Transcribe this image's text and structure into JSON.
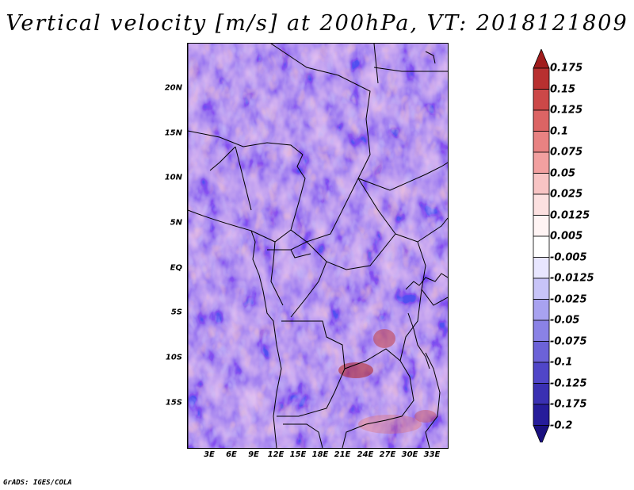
{
  "title": "Vertical velocity [m/s] at 200hPa, VT: 2018121809",
  "credit": "GrADS: IGES/COLA",
  "map": {
    "lat_labels": [
      "20N",
      "15N",
      "10N",
      "5N",
      "EQ",
      "5S",
      "10S",
      "15S"
    ],
    "lon_labels": [
      "3E",
      "6E",
      "9E",
      "12E",
      "15E",
      "18E",
      "21E",
      "24E",
      "27E",
      "30E",
      "33E"
    ]
  },
  "colorbar": {
    "labels": [
      "0.175",
      "0.15",
      "0.125",
      "0.1",
      "0.075",
      "0.05",
      "0.025",
      "0.0125",
      "0.005",
      "-0.005",
      "-0.0125",
      "-0.025",
      "-0.05",
      "-0.075",
      "-0.1",
      "-0.125",
      "-0.175",
      "-0.2"
    ],
    "colors": [
      "#a01c1c",
      "#b83030",
      "#cc4848",
      "#dc6464",
      "#e88282",
      "#f2a0a0",
      "#f8c4c4",
      "#fce0e0",
      "#fff4f4",
      "#ffffff",
      "#e8e6ff",
      "#c8c4f8",
      "#a8a2f0",
      "#8a82e6",
      "#6c62d8",
      "#5046c8",
      "#3a30b2",
      "#261c9a",
      "#1a1080"
    ]
  }
}
